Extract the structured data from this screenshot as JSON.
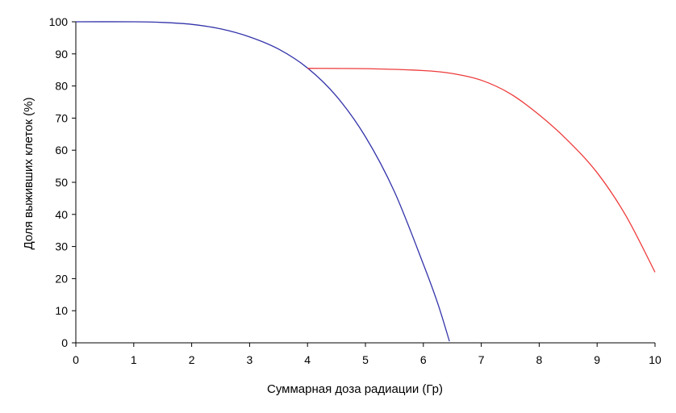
{
  "chart_data": {
    "type": "line",
    "title": "",
    "xlabel": "Суммарная доза радиации (Гр)",
    "ylabel": "Доля выживших клеток  (%)",
    "xlim": [
      0,
      10
    ],
    "ylim": [
      0,
      100
    ],
    "x_ticks": [
      0,
      1,
      2,
      3,
      4,
      5,
      6,
      7,
      8,
      9,
      10
    ],
    "y_ticks": [
      0,
      10,
      20,
      30,
      40,
      50,
      60,
      70,
      80,
      90,
      100
    ],
    "grid": false,
    "legend": "none",
    "series": [
      {
        "color": "#3333aa",
        "x": [
          0,
          1,
          1.5,
          2,
          2.5,
          3,
          3.5,
          4,
          4.5,
          5,
          5.5,
          6,
          6.25,
          6.45
        ],
        "y": [
          100,
          100,
          99.8,
          99.2,
          97.8,
          95.3,
          91.5,
          85.6,
          76.8,
          64.2,
          47.1,
          24.5,
          12.2,
          0.5
        ]
      },
      {
        "color": "#ee3b3b",
        "x": [
          4,
          5,
          6,
          6.5,
          7,
          7.5,
          8,
          8.5,
          9,
          9.5,
          10
        ],
        "y": [
          85.5,
          85.4,
          84.8,
          83.9,
          81.8,
          77.6,
          71,
          62.9,
          53,
          39.5,
          22
        ]
      }
    ]
  }
}
